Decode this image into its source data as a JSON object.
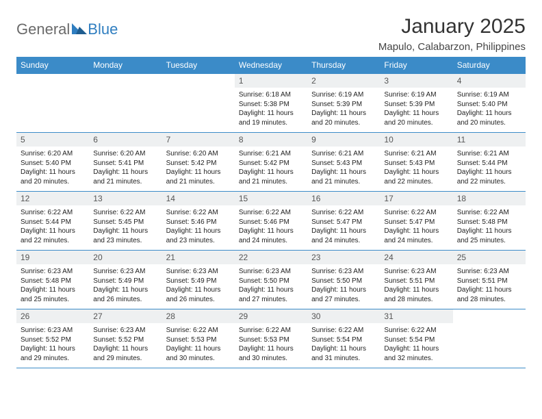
{
  "brand": {
    "part1": "General",
    "part2": "Blue"
  },
  "title": "January 2025",
  "location": "Mapulo, Calabarzon, Philippines",
  "colors": {
    "header_bg": "#3b8bc8",
    "header_text": "#ffffff",
    "daynum_bg": "#eef0f1",
    "daynum_text": "#555555",
    "body_text": "#222222",
    "border": "#3b8bc8",
    "brand_gray": "#6a6a6a",
    "brand_blue": "#2f7ec0"
  },
  "weekdays": [
    "Sunday",
    "Monday",
    "Tuesday",
    "Wednesday",
    "Thursday",
    "Friday",
    "Saturday"
  ],
  "weeks": [
    [
      null,
      null,
      null,
      {
        "n": "1",
        "sr": "6:18 AM",
        "ss": "5:38 PM",
        "dl": "11 hours and 19 minutes."
      },
      {
        "n": "2",
        "sr": "6:19 AM",
        "ss": "5:39 PM",
        "dl": "11 hours and 20 minutes."
      },
      {
        "n": "3",
        "sr": "6:19 AM",
        "ss": "5:39 PM",
        "dl": "11 hours and 20 minutes."
      },
      {
        "n": "4",
        "sr": "6:19 AM",
        "ss": "5:40 PM",
        "dl": "11 hours and 20 minutes."
      }
    ],
    [
      {
        "n": "5",
        "sr": "6:20 AM",
        "ss": "5:40 PM",
        "dl": "11 hours and 20 minutes."
      },
      {
        "n": "6",
        "sr": "6:20 AM",
        "ss": "5:41 PM",
        "dl": "11 hours and 21 minutes."
      },
      {
        "n": "7",
        "sr": "6:20 AM",
        "ss": "5:42 PM",
        "dl": "11 hours and 21 minutes."
      },
      {
        "n": "8",
        "sr": "6:21 AM",
        "ss": "5:42 PM",
        "dl": "11 hours and 21 minutes."
      },
      {
        "n": "9",
        "sr": "6:21 AM",
        "ss": "5:43 PM",
        "dl": "11 hours and 21 minutes."
      },
      {
        "n": "10",
        "sr": "6:21 AM",
        "ss": "5:43 PM",
        "dl": "11 hours and 22 minutes."
      },
      {
        "n": "11",
        "sr": "6:21 AM",
        "ss": "5:44 PM",
        "dl": "11 hours and 22 minutes."
      }
    ],
    [
      {
        "n": "12",
        "sr": "6:22 AM",
        "ss": "5:44 PM",
        "dl": "11 hours and 22 minutes."
      },
      {
        "n": "13",
        "sr": "6:22 AM",
        "ss": "5:45 PM",
        "dl": "11 hours and 23 minutes."
      },
      {
        "n": "14",
        "sr": "6:22 AM",
        "ss": "5:46 PM",
        "dl": "11 hours and 23 minutes."
      },
      {
        "n": "15",
        "sr": "6:22 AM",
        "ss": "5:46 PM",
        "dl": "11 hours and 24 minutes."
      },
      {
        "n": "16",
        "sr": "6:22 AM",
        "ss": "5:47 PM",
        "dl": "11 hours and 24 minutes."
      },
      {
        "n": "17",
        "sr": "6:22 AM",
        "ss": "5:47 PM",
        "dl": "11 hours and 24 minutes."
      },
      {
        "n": "18",
        "sr": "6:22 AM",
        "ss": "5:48 PM",
        "dl": "11 hours and 25 minutes."
      }
    ],
    [
      {
        "n": "19",
        "sr": "6:23 AM",
        "ss": "5:48 PM",
        "dl": "11 hours and 25 minutes."
      },
      {
        "n": "20",
        "sr": "6:23 AM",
        "ss": "5:49 PM",
        "dl": "11 hours and 26 minutes."
      },
      {
        "n": "21",
        "sr": "6:23 AM",
        "ss": "5:49 PM",
        "dl": "11 hours and 26 minutes."
      },
      {
        "n": "22",
        "sr": "6:23 AM",
        "ss": "5:50 PM",
        "dl": "11 hours and 27 minutes."
      },
      {
        "n": "23",
        "sr": "6:23 AM",
        "ss": "5:50 PM",
        "dl": "11 hours and 27 minutes."
      },
      {
        "n": "24",
        "sr": "6:23 AM",
        "ss": "5:51 PM",
        "dl": "11 hours and 28 minutes."
      },
      {
        "n": "25",
        "sr": "6:23 AM",
        "ss": "5:51 PM",
        "dl": "11 hours and 28 minutes."
      }
    ],
    [
      {
        "n": "26",
        "sr": "6:23 AM",
        "ss": "5:52 PM",
        "dl": "11 hours and 29 minutes."
      },
      {
        "n": "27",
        "sr": "6:23 AM",
        "ss": "5:52 PM",
        "dl": "11 hours and 29 minutes."
      },
      {
        "n": "28",
        "sr": "6:22 AM",
        "ss": "5:53 PM",
        "dl": "11 hours and 30 minutes."
      },
      {
        "n": "29",
        "sr": "6:22 AM",
        "ss": "5:53 PM",
        "dl": "11 hours and 30 minutes."
      },
      {
        "n": "30",
        "sr": "6:22 AM",
        "ss": "5:54 PM",
        "dl": "11 hours and 31 minutes."
      },
      {
        "n": "31",
        "sr": "6:22 AM",
        "ss": "5:54 PM",
        "dl": "11 hours and 32 minutes."
      },
      null
    ]
  ],
  "labels": {
    "sunrise": "Sunrise: ",
    "sunset": "Sunset: ",
    "daylight": "Daylight: "
  }
}
